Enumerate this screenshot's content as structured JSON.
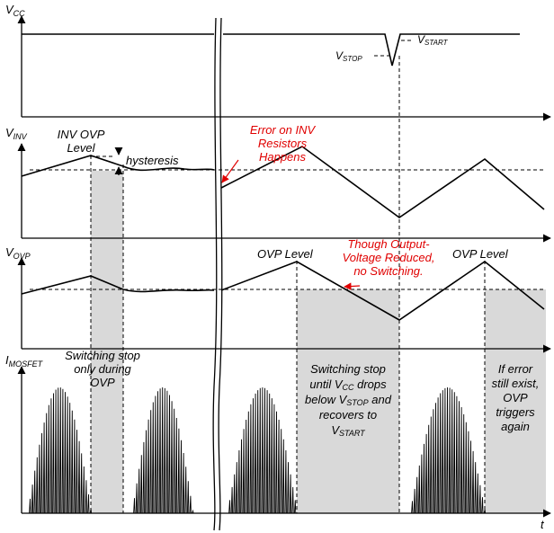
{
  "labels": {
    "vcc": "V",
    "vcc_sub": "CC",
    "vinv": "V",
    "vinv_sub": "INV",
    "vovp": "V",
    "vovp_sub": "OVP",
    "imosfet": "I",
    "imosfet_sub": "MOSFET",
    "t_axis": "t",
    "vstop": "V",
    "vstop_sub": "STOP",
    "vstart": "V",
    "vstart_sub": "START",
    "inv_ovp_level_1": "INV OVP",
    "inv_ovp_level_2": "Level",
    "hysteresis": "hysteresis",
    "ovp_level_1": "OVP Level",
    "ovp_level_2": "OVP Level"
  },
  "annotations": {
    "error_inv_1": "Error on INV",
    "error_inv_2": "Resistors",
    "error_inv_3": "Happens",
    "though_1": "Though Output-",
    "though_2": "Voltage Reduced,",
    "though_3": "no Switching.",
    "switch_ovp_1": "Switching stop",
    "switch_ovp_2": "only during",
    "switch_ovp_3": "OVP",
    "switch_vcc_1": "Switching stop",
    "switch_vcc_2a": "until V",
    "switch_vcc_2b": "CC",
    "switch_vcc_2c": " drops",
    "switch_vcc_3a": "below V",
    "switch_vcc_3b": "STOP",
    "switch_vcc_3c": " and",
    "switch_vcc_4": "recovers to",
    "switch_vcc_5a": "V",
    "switch_vcc_5b": "START",
    "retrigger_1": "If error",
    "retrigger_2": "still exist,",
    "retrigger_3": "OVP",
    "retrigger_4": "triggers",
    "retrigger_5": "again"
  },
  "colors": {
    "annotation": "#e00000",
    "shade": "#d9d9d9",
    "signal": "#000000"
  }
}
